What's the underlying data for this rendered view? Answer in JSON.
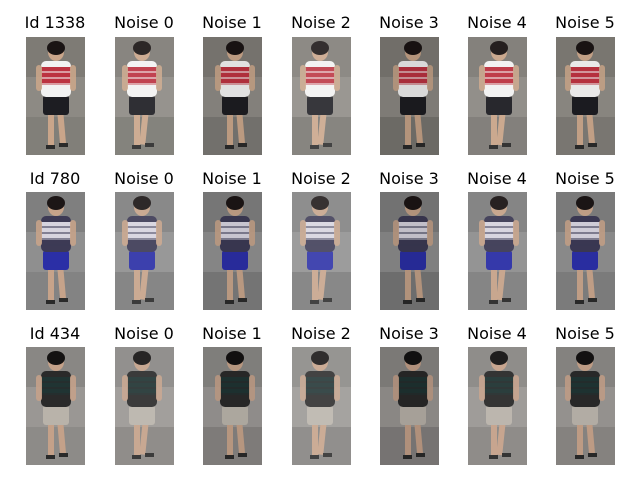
{
  "rows": [
    {
      "identity": "Id 1338",
      "noise_titles": [
        "Noise 0",
        "Noise 1",
        "Noise 2",
        "Noise 3",
        "Noise 4",
        "Noise 5"
      ],
      "colors": {
        "bg": "#8d8a84",
        "top": "#b61e2e",
        "top2": "#f2f2f2",
        "bottom": "#1d1d22",
        "skin": "#c9a58a",
        "hair": "#1a1414"
      }
    },
    {
      "identity": "Id 780",
      "noise_titles": [
        "Noise 0",
        "Noise 1",
        "Noise 2",
        "Noise 3",
        "Noise 4",
        "Noise 5"
      ],
      "colors": {
        "bg": "#8f8f8f",
        "top": "#e8e6ee",
        "top2": "#3d3a55",
        "bottom": "#2b2fa6",
        "skin": "#c6a38a",
        "hair": "#1c1616"
      }
    },
    {
      "identity": "Id 434",
      "noise_titles": [
        "Noise 0",
        "Noise 1",
        "Noise 2",
        "Noise 3",
        "Noise 4",
        "Noise 5"
      ],
      "colors": {
        "bg": "#9a9794",
        "top": "#1f3534",
        "top2": "#2a2a2a",
        "bottom": "#b9b3aa",
        "skin": "#c4a189",
        "hair": "#141212"
      }
    }
  ]
}
